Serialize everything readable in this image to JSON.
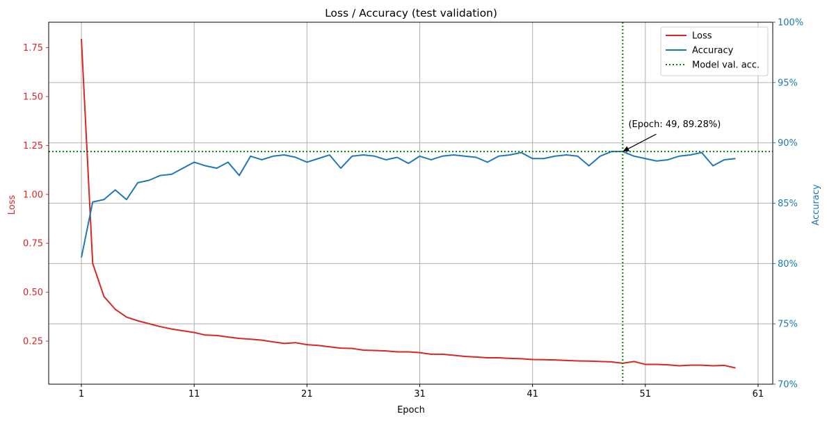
{
  "chart_data": {
    "type": "line",
    "title": "Loss / Accuracy (test validation)",
    "xlabel": "Epoch",
    "ylabel_left": "Loss",
    "ylabel_right": "Accuracy",
    "xlim": [
      -1.9,
      62.3
    ],
    "ylim_left": [
      0.03,
      1.88
    ],
    "ylim_right": [
      70,
      100
    ],
    "x_ticks": [
      1,
      11,
      21,
      31,
      41,
      51,
      61
    ],
    "y_left_ticks": [
      0.25,
      0.5,
      0.75,
      1.0,
      1.25,
      1.5,
      1.75
    ],
    "y_left_tick_labels": [
      "0.25",
      "0.50",
      "0.75",
      "1.00",
      "1.25",
      "1.50",
      "1.75"
    ],
    "y_right_ticks": [
      70,
      75,
      80,
      85,
      90,
      95,
      100
    ],
    "y_right_tick_labels": [
      "70%",
      "75%",
      "80%",
      "85%",
      "90%",
      "95%",
      "100%"
    ],
    "grid": true,
    "legend_position": "top-right",
    "colors": {
      "loss": "#d62728",
      "accuracy": "#1f77b4",
      "model_line": "#008000",
      "axis": "#000000",
      "grid": "#b0b0b0"
    },
    "x": [
      1,
      2,
      3,
      4,
      5,
      6,
      7,
      8,
      9,
      10,
      11,
      12,
      13,
      14,
      15,
      16,
      17,
      18,
      19,
      20,
      21,
      22,
      23,
      24,
      25,
      26,
      27,
      28,
      29,
      30,
      31,
      32,
      33,
      34,
      35,
      36,
      37,
      38,
      39,
      40,
      41,
      42,
      43,
      44,
      45,
      46,
      47,
      48,
      49,
      50,
      51,
      52,
      53,
      54,
      55,
      56,
      57,
      58,
      59
    ],
    "series": [
      {
        "name": "Loss",
        "axis": "left",
        "values": [
          1.795,
          0.648,
          0.478,
          0.413,
          0.373,
          0.354,
          0.339,
          0.324,
          0.312,
          0.303,
          0.294,
          0.281,
          0.279,
          0.271,
          0.264,
          0.26,
          0.255,
          0.246,
          0.238,
          0.242,
          0.232,
          0.228,
          0.221,
          0.214,
          0.213,
          0.204,
          0.202,
          0.2,
          0.195,
          0.195,
          0.191,
          0.183,
          0.183,
          0.178,
          0.172,
          0.169,
          0.165,
          0.165,
          0.162,
          0.16,
          0.156,
          0.155,
          0.154,
          0.151,
          0.149,
          0.148,
          0.146,
          0.144,
          0.137,
          0.146,
          0.131,
          0.131,
          0.129,
          0.124,
          0.127,
          0.127,
          0.124,
          0.126,
          0.113
        ]
      },
      {
        "name": "Accuracy",
        "axis": "right",
        "values": [
          80.5,
          85.1,
          85.3,
          86.1,
          85.3,
          86.7,
          86.9,
          87.3,
          87.4,
          87.9,
          88.4,
          88.1,
          87.9,
          88.4,
          87.3,
          88.9,
          88.6,
          88.9,
          89.0,
          88.8,
          88.4,
          88.7,
          89.0,
          87.9,
          88.9,
          89.0,
          88.9,
          88.6,
          88.8,
          88.3,
          88.9,
          88.6,
          88.9,
          89.0,
          88.9,
          88.8,
          88.4,
          88.9,
          89.0,
          89.2,
          88.7,
          88.7,
          88.9,
          89.0,
          88.9,
          88.1,
          88.9,
          89.28,
          89.28,
          88.9,
          88.7,
          88.5,
          88.6,
          88.9,
          89.0,
          89.2,
          88.1,
          88.6,
          88.7
        ]
      }
    ],
    "reference_lines": [
      {
        "name": "Model val. acc.",
        "style": "dotted",
        "horizontal_accuracy": 89.28,
        "vertical_epoch": 49
      }
    ],
    "annotation": {
      "text": "(Epoch: 49, 89.28%)",
      "target_epoch": 49,
      "target_accuracy": 89.28,
      "text_epoch": 49.5,
      "text_accuracy": 91.3
    }
  }
}
